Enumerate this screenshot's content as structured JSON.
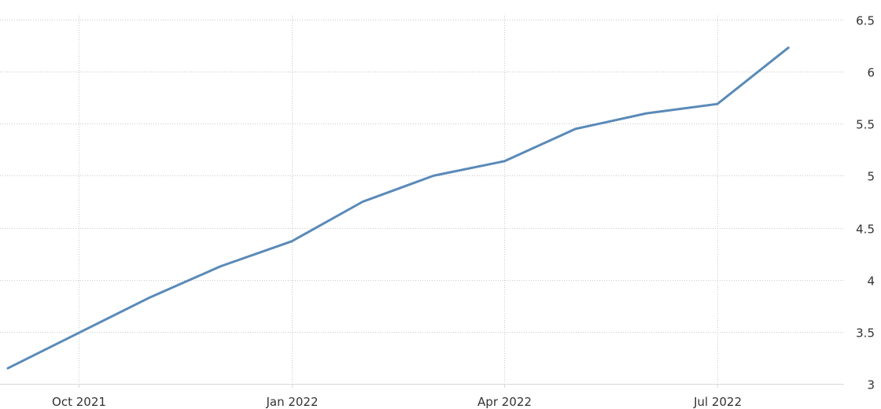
{
  "chart_data": {
    "type": "line",
    "title": "",
    "xlabel": "",
    "ylabel": "",
    "x": [
      "2021-08",
      "2021-09",
      "2021-10",
      "2021-11",
      "2021-12",
      "2022-01",
      "2022-02",
      "2022-03",
      "2022-04",
      "2022-05",
      "2022-06",
      "2022-07",
      "2022-08"
    ],
    "series": [
      {
        "values": [
          3.15,
          3.49,
          3.83,
          4.13,
          4.37,
          4.75,
          5.0,
          5.14,
          5.45,
          5.6,
          5.69,
          6.23
        ],
        "x": [
          "2021-08",
          "2021-09",
          "2021-10",
          "2021-11",
          "2021-12",
          "2022-01",
          "2022-02",
          "2022-03",
          "2022-04",
          "2022-05",
          "2022-06",
          "2022-07"
        ],
        "color": "#5a8ab8"
      }
    ],
    "x_ticks": [
      {
        "value": "2021-09",
        "label": "Oct 2021"
      },
      {
        "value": "2021-12",
        "label": "Jan 2022"
      },
      {
        "value": "2022-03",
        "label": "Apr 2022"
      },
      {
        "value": "2022-06",
        "label": "Jul 2022"
      }
    ],
    "y_ticks": [
      {
        "value": 3,
        "label": "3"
      },
      {
        "value": 3.5,
        "label": "3.5"
      },
      {
        "value": 4,
        "label": "4"
      },
      {
        "value": 4.5,
        "label": "4.5"
      },
      {
        "value": 5,
        "label": "5"
      },
      {
        "value": 5.5,
        "label": "5.5"
      },
      {
        "value": 6,
        "label": "6"
      },
      {
        "value": 6.5,
        "label": "6.5"
      }
    ],
    "ylim": [
      3,
      6.5
    ],
    "xlim": [
      "2021-08",
      "2022-09"
    ],
    "y_axis_position": "right",
    "grid": true,
    "legend": "none"
  }
}
